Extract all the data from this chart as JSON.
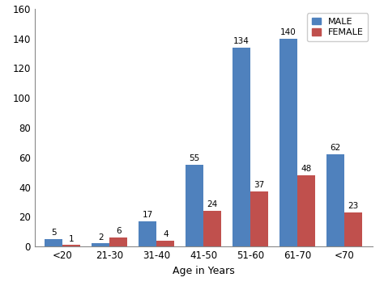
{
  "categories": [
    "<20",
    "21-30",
    "31-40",
    "41-50",
    "51-60",
    "61-70",
    "<70"
  ],
  "male_values": [
    5,
    2,
    17,
    55,
    134,
    140,
    62
  ],
  "female_values": [
    1,
    6,
    4,
    24,
    37,
    48,
    23
  ],
  "male_color": "#4F81BD",
  "female_color": "#C0504D",
  "xlabel": "Age in Years",
  "ylim": [
    0,
    160
  ],
  "yticks": [
    0,
    20,
    40,
    60,
    80,
    100,
    120,
    140,
    160
  ],
  "bar_width": 0.38,
  "legend_male": "MALE",
  "legend_female": "FEMALE",
  "background_color": "#ffffff",
  "label_fontsize": 7.5,
  "axis_label_fontsize": 9,
  "tick_fontsize": 8.5
}
